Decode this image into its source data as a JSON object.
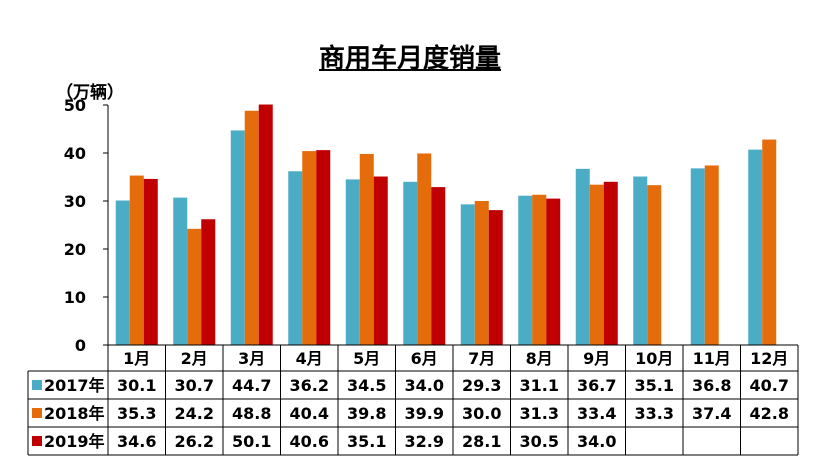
{
  "chart_data": {
    "type": "bar",
    "title": "商用车月度销量",
    "ylabel": "（万辆）",
    "xlabel": "",
    "ylim": [
      0,
      50
    ],
    "yticks": [
      "0",
      "10",
      "20",
      "30",
      "40",
      "50"
    ],
    "categories": [
      "1月",
      "2月",
      "3月",
      "4月",
      "5月",
      "6月",
      "7月",
      "8月",
      "9月",
      "10月",
      "11月",
      "12月"
    ],
    "series": [
      {
        "name": "2017年",
        "color": "#4bacc6",
        "values": [
          30.1,
          30.7,
          44.7,
          36.2,
          34.5,
          34.0,
          29.3,
          31.1,
          36.7,
          35.1,
          36.8,
          40.7
        ],
        "labels": [
          "30.1",
          "30.7",
          "44.7",
          "36.2",
          "34.5",
          "34.0",
          "29.3",
          "31.1",
          "36.7",
          "35.1",
          "36.8",
          "40.7"
        ]
      },
      {
        "name": "2018年",
        "color": "#e46c0a",
        "values": [
          35.3,
          24.2,
          48.8,
          40.4,
          39.8,
          39.9,
          30.0,
          31.3,
          33.4,
          33.3,
          37.4,
          42.8
        ],
        "labels": [
          "35.3",
          "24.2",
          "48.8",
          "40.4",
          "39.8",
          "39.9",
          "30.0",
          "31.3",
          "33.4",
          "33.3",
          "37.4",
          "42.8"
        ]
      },
      {
        "name": "2019年",
        "color": "#c00000",
        "values": [
          34.6,
          26.2,
          50.1,
          40.6,
          35.1,
          32.9,
          28.1,
          30.5,
          34.0,
          null,
          null,
          null
        ],
        "labels": [
          "34.6",
          "26.2",
          "50.1",
          "40.6",
          "35.1",
          "32.9",
          "28.1",
          "30.5",
          "34.0",
          "",
          "",
          ""
        ]
      }
    ],
    "legend": "data-table",
    "grid": false
  }
}
